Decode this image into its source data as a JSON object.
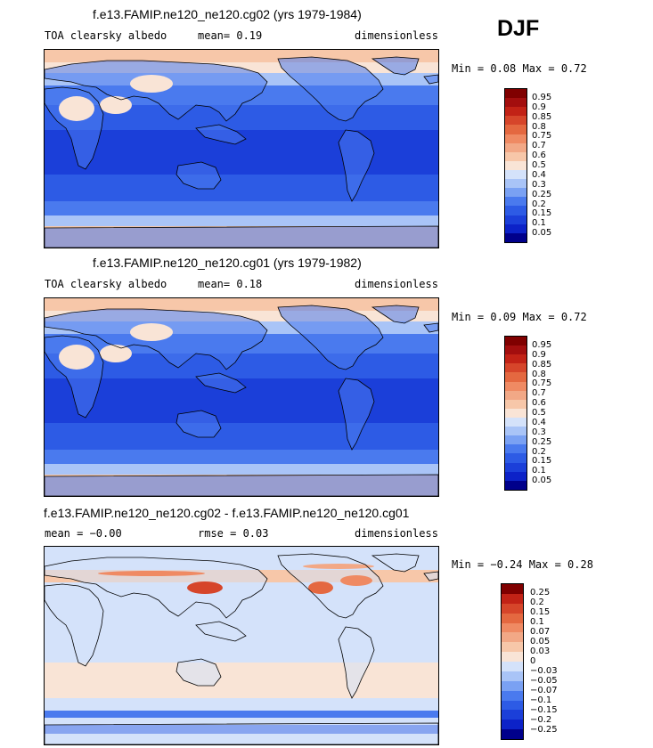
{
  "season": "DJF",
  "colors": {
    "albedo": [
      "#00008b",
      "#0c22c8",
      "#1b3fd9",
      "#2d5be5",
      "#4a7aee",
      "#7aa1f3",
      "#a9c4f7",
      "#d4e2fa",
      "#f9e4d6",
      "#f7c7a9",
      "#f2a886",
      "#ef8a63",
      "#e46840",
      "#d6452a",
      "#c22216",
      "#a30e0e",
      "#800000"
    ],
    "diff": [
      "#00008b",
      "#0c22c8",
      "#1b3fd9",
      "#2d5be5",
      "#4a7aee",
      "#7aa1f3",
      "#a9c4f7",
      "#d4e2fa",
      "#f9e4d6",
      "#f7c7a9",
      "#f2a886",
      "#ef8a63",
      "#e46840",
      "#d6452a",
      "#c22216",
      "#800000"
    ]
  },
  "panels": [
    {
      "title": "f.e13.FAMIP.ne120_ne120.cg02 (yrs 1979-1984)",
      "header_left": "TOA clearsky albedo",
      "header_mid": "mean=   0.19",
      "header_right": "dimensionless",
      "minmax": "Min =   0.08 Max =   0.72",
      "cbar_labels": [
        "0.95",
        "0.9",
        "0.85",
        "0.8",
        "0.75",
        "0.7",
        "0.6",
        "0.5",
        "0.4",
        "0.3",
        "0.25",
        "0.2",
        "0.15",
        "0.1",
        "0.05"
      ]
    },
    {
      "title": "f.e13.FAMIP.ne120_ne120.cg01 (yrs 1979-1982)",
      "header_left": "TOA clearsky albedo",
      "header_mid": "mean=   0.18",
      "header_right": "dimensionless",
      "minmax": "Min =   0.09 Max =   0.72",
      "cbar_labels": [
        "0.95",
        "0.9",
        "0.85",
        "0.8",
        "0.75",
        "0.7",
        "0.6",
        "0.5",
        "0.4",
        "0.3",
        "0.25",
        "0.2",
        "0.15",
        "0.1",
        "0.05"
      ]
    },
    {
      "title": "f.e13.FAMIP.ne120_ne120.cg02 - f.e13.FAMIP.ne120_ne120.cg01",
      "header_left": "mean =   −0.00",
      "header_mid": "rmse =   0.03",
      "header_right": "dimensionless",
      "minmax": "Min =  −0.24 Max =   0.28",
      "cbar_labels": [
        "0.25",
        "0.2",
        "0.15",
        "0.1",
        "0.07",
        "0.05",
        "0.03",
        "0",
        "−0.03",
        "−0.05",
        "−0.07",
        "−0.1",
        "−0.15",
        "−0.2",
        "−0.25"
      ]
    }
  ]
}
